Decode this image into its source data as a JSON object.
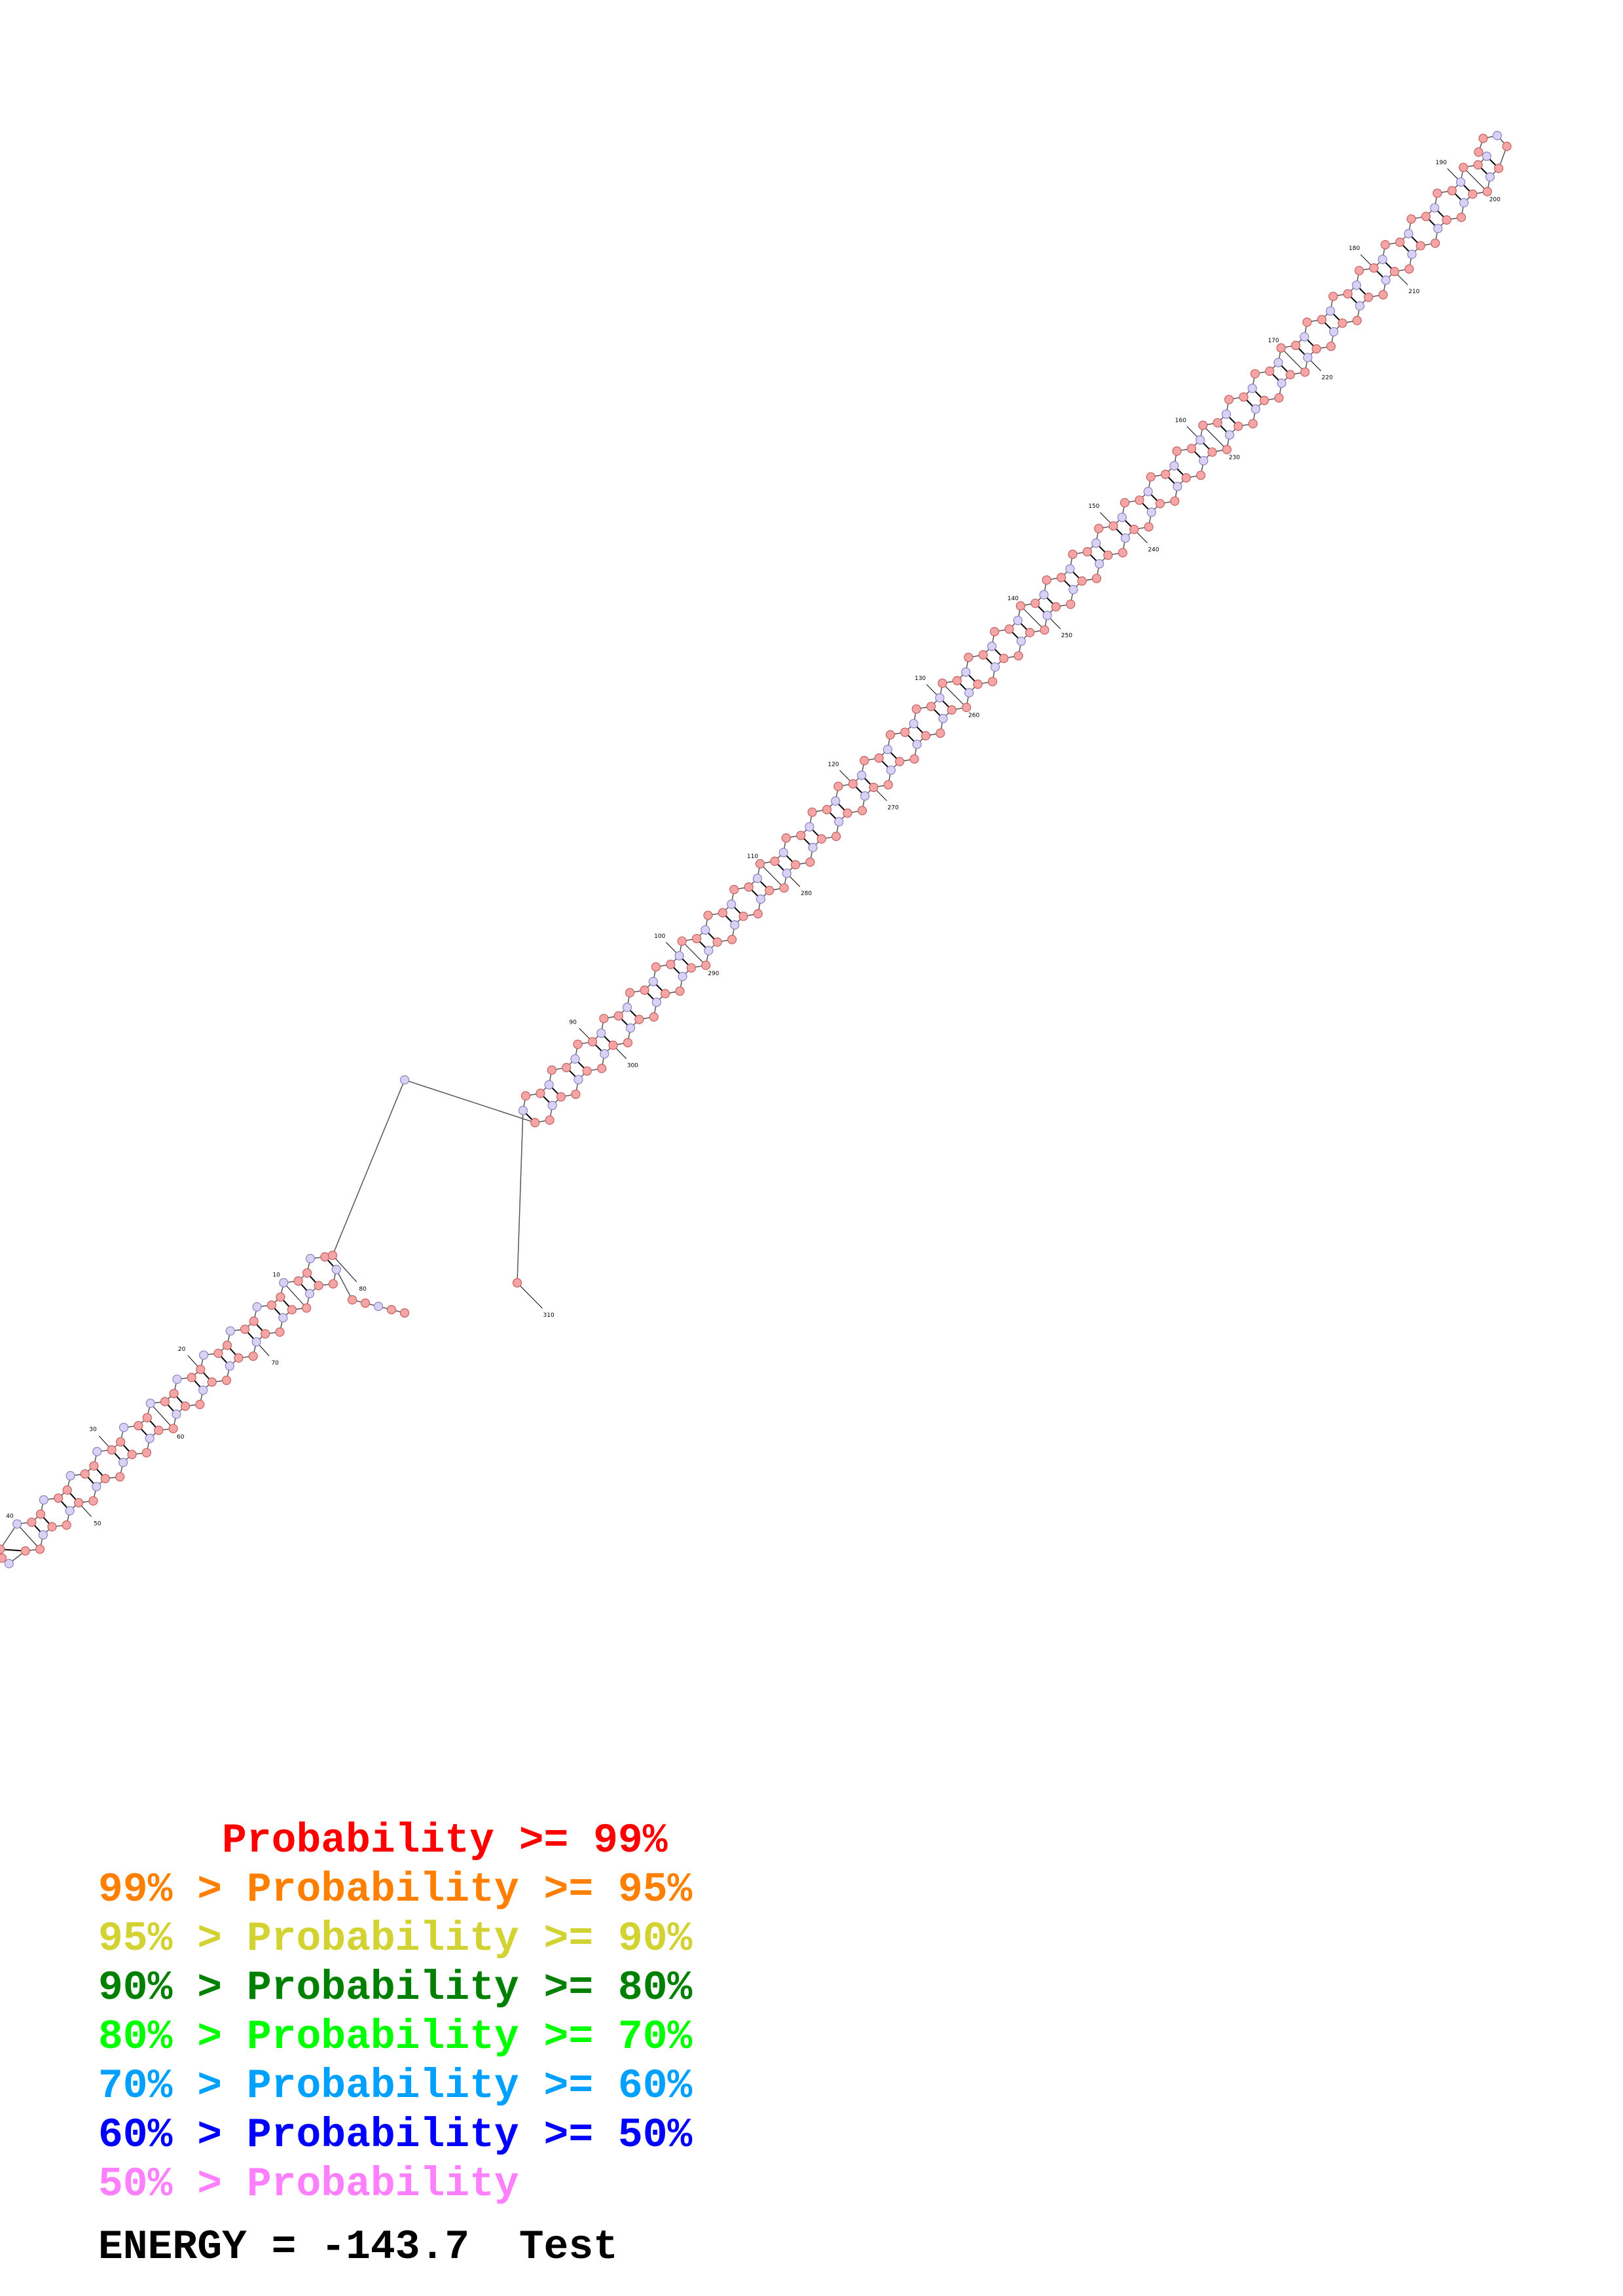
{
  "structure": {
    "sequence_length": 310,
    "tick_labels": [
      "10",
      "20",
      "30",
      "40",
      "50",
      "60",
      "70",
      "80",
      "90",
      "100",
      "110",
      "120",
      "130",
      "140",
      "150",
      "160",
      "170",
      "180",
      "190",
      "200",
      "210",
      "220",
      "230",
      "240",
      "250",
      "260",
      "270",
      "280",
      "290",
      "300",
      "310"
    ],
    "base_fill_colors": {
      "high_probability": "#f4a6a6",
      "low_probability": "#d9d2f4"
    },
    "base_stroke_colors": {
      "high_probability": "#c86060",
      "low_probability": "#8f82c4"
    },
    "pair_color": "#000000",
    "backbone_color": "#555555"
  },
  "legend": {
    "rows": [
      {
        "prefix": "     ",
        "text": "Probability >= 99%",
        "color": "#ff0000"
      },
      {
        "prefix": "99% > ",
        "text": "Probability >= 95%",
        "color": "#ff8000"
      },
      {
        "prefix": "95% > ",
        "text": "Probability >= 90%",
        "color": "#d2d232"
      },
      {
        "prefix": "90% > ",
        "text": "Probability >= 80%",
        "color": "#008000"
      },
      {
        "prefix": "80% > ",
        "text": "Probability >= 70%",
        "color": "#00ff00"
      },
      {
        "prefix": "70% > ",
        "text": "Probability >= 60%",
        "color": "#00a0ff"
      },
      {
        "prefix": "60% > ",
        "text": "Probability >= 50%",
        "color": "#0000ff"
      },
      {
        "prefix": "50% > ",
        "text": "Probability",
        "color": "#ff80ff"
      }
    ]
  },
  "energy": {
    "label": "ENERGY = ",
    "value": "-143.7",
    "title": "Test"
  }
}
